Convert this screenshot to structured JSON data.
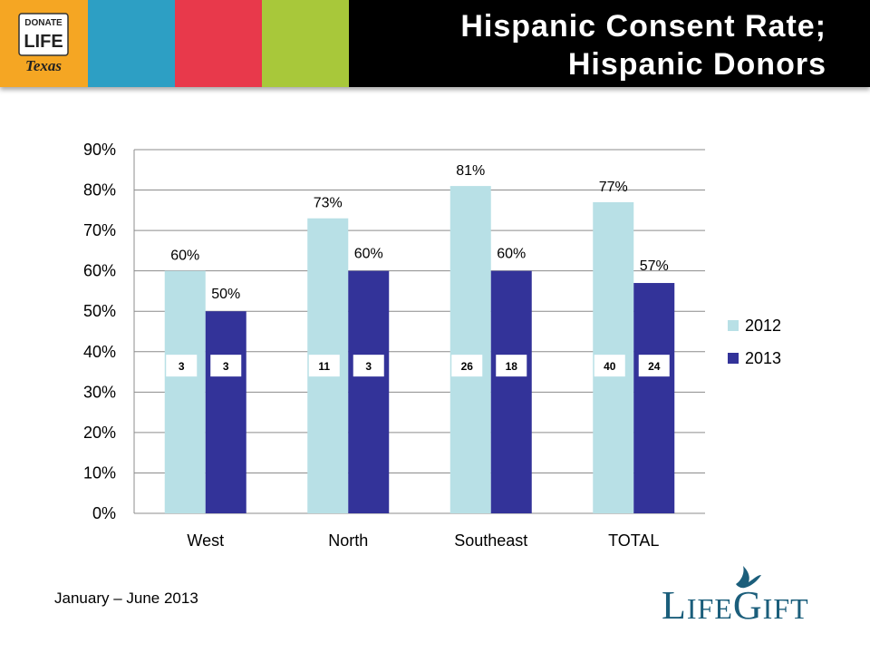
{
  "header": {
    "title_line1": "Hispanic Consent Rate;",
    "title_line2": "Hispanic Donors",
    "logo_line1": "DONATE",
    "logo_line2": "LIFE",
    "logo_line3": "Texas"
  },
  "colors": {
    "stripe_orange": "#f5a623",
    "stripe_blue": "#2d9fc4",
    "stripe_red": "#e8394b",
    "stripe_green": "#a8c83a",
    "series_2012": "#b8e0e6",
    "series_2013": "#333399",
    "brand": "#1b5e7b"
  },
  "chart_data": {
    "type": "bar",
    "categories": [
      "West",
      "North",
      "Southeast",
      "TOTAL"
    ],
    "series": [
      {
        "name": "2012",
        "values": [
          60,
          73,
          81,
          77
        ],
        "labels": [
          "60%",
          "73%",
          "81%",
          "77%"
        ],
        "counts": [
          "3",
          "11",
          "26",
          "40"
        ]
      },
      {
        "name": "2013",
        "values": [
          50,
          60,
          60,
          57
        ],
        "labels": [
          "50%",
          "60%",
          "60%",
          "57%"
        ],
        "counts": [
          "3",
          "3",
          "18",
          "24"
        ]
      }
    ],
    "ylim": [
      0,
      90
    ],
    "yticks": [
      "0%",
      "10%",
      "20%",
      "30%",
      "40%",
      "50%",
      "60%",
      "70%",
      "80%",
      "90%"
    ],
    "grid": true,
    "legend": "right",
    "xlabel": "",
    "ylabel": ""
  },
  "footnote": "January – June 2013",
  "brand": {
    "text_L": "L",
    "text_ife": "IFE",
    "text_G": "G",
    "text_ift": "IFT"
  }
}
